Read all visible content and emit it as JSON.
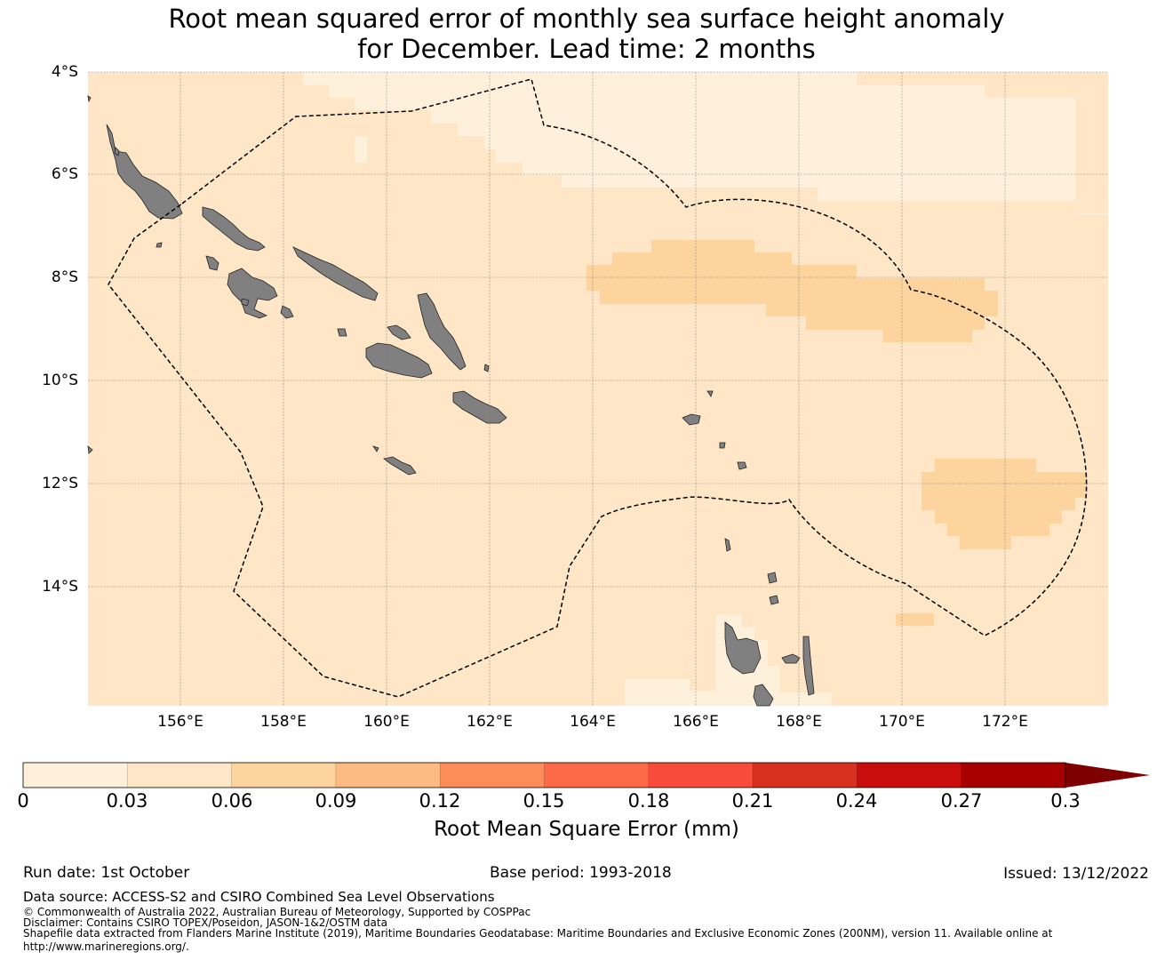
{
  "title": {
    "line1": "Root mean squared error of monthly sea surface height anomaly",
    "line2": "for December. Lead time: 2 months"
  },
  "map": {
    "lat_labels": [
      "4°S",
      "6°S",
      "8°S",
      "10°S",
      "12°S",
      "14°S"
    ],
    "lon_labels": [
      "156°E",
      "158°E",
      "160°E",
      "162°E",
      "164°E",
      "166°E",
      "168°E",
      "170°E",
      "172°E"
    ],
    "colors": {
      "ocean_base": "#fee6c6",
      "ocean_low": "#fff0dc",
      "ocean_mid": "#fdd49e",
      "land": "#808080",
      "grid": "#7a7a7a",
      "boundary": "#000000"
    }
  },
  "colorbar": {
    "ticks": [
      "0",
      "0.03",
      "0.06",
      "0.09",
      "0.12",
      "0.15",
      "0.18",
      "0.21",
      "0.24",
      "0.27",
      "0.3"
    ],
    "colors": [
      "#fff0dc",
      "#fee6c6",
      "#fdd49e",
      "#fdbb84",
      "#fc8d59",
      "#fc6a48",
      "#f84b3a",
      "#d7301f",
      "#c90c0c",
      "#a80000",
      "#7f0000"
    ],
    "label": "Root Mean Square Error (mm)"
  },
  "footer": {
    "run_date": "Run date: 1st October",
    "base_period": "Base period: 1993-2018",
    "issued": "Issued: 13/12/2022",
    "data_source": "Data source: ACCESS-S2 and CSIRO Combined Sea Level Observations",
    "copyright": "© Commonwealth of Australia 2022, Australian Bureau of Meteorology, Supported by COSPPac",
    "disclaimer": "Disclaimer: Contains CSIRO TOPEX/Poseidon, JASON-1&2/OSTM data",
    "shapefile": "Shapefile data extracted from Flanders Marine Institute (2019), Maritime Boundaries Geodatabase: Maritime Boundaries and Exclusive Economic Zones (200NM), version 11. Available online at",
    "url": "http://www.marineregions.org/."
  }
}
